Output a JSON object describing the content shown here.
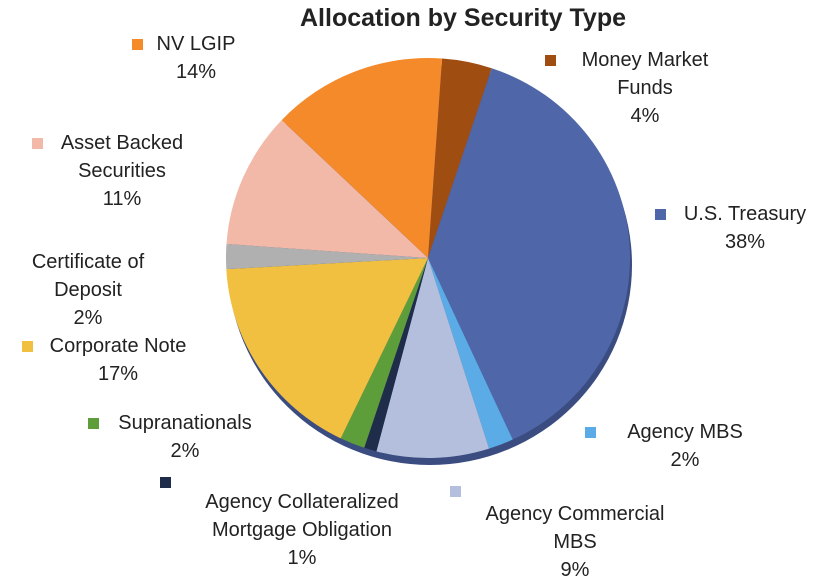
{
  "chart_data": {
    "type": "pie",
    "title": "Allocation by Security Type",
    "categories": [
      "Money Market Funds",
      "U.S. Treasury",
      "Agency MBS",
      "Agency Commercial MBS",
      "Agency Collateralized Mortgage Obligation",
      "Supranationals",
      "Corporate Note",
      "Certificate of Deposit",
      "Asset Backed Securities",
      "NV LGIP"
    ],
    "values": [
      4,
      38,
      2,
      9,
      1,
      2,
      17,
      2,
      11,
      14
    ],
    "value_labels": [
      "4%",
      "38%",
      "2%",
      "9%",
      "1%",
      "2%",
      "17%",
      "2%",
      "11%",
      "14%"
    ],
    "colors": [
      "#a04d12",
      "#4f67a8",
      "#5aabe6",
      "#b4bedd",
      "#1f2c4a",
      "#5e9e3a",
      "#f2c040",
      "#b0b0b0",
      "#f2b8a8",
      "#f58a2a"
    ]
  }
}
